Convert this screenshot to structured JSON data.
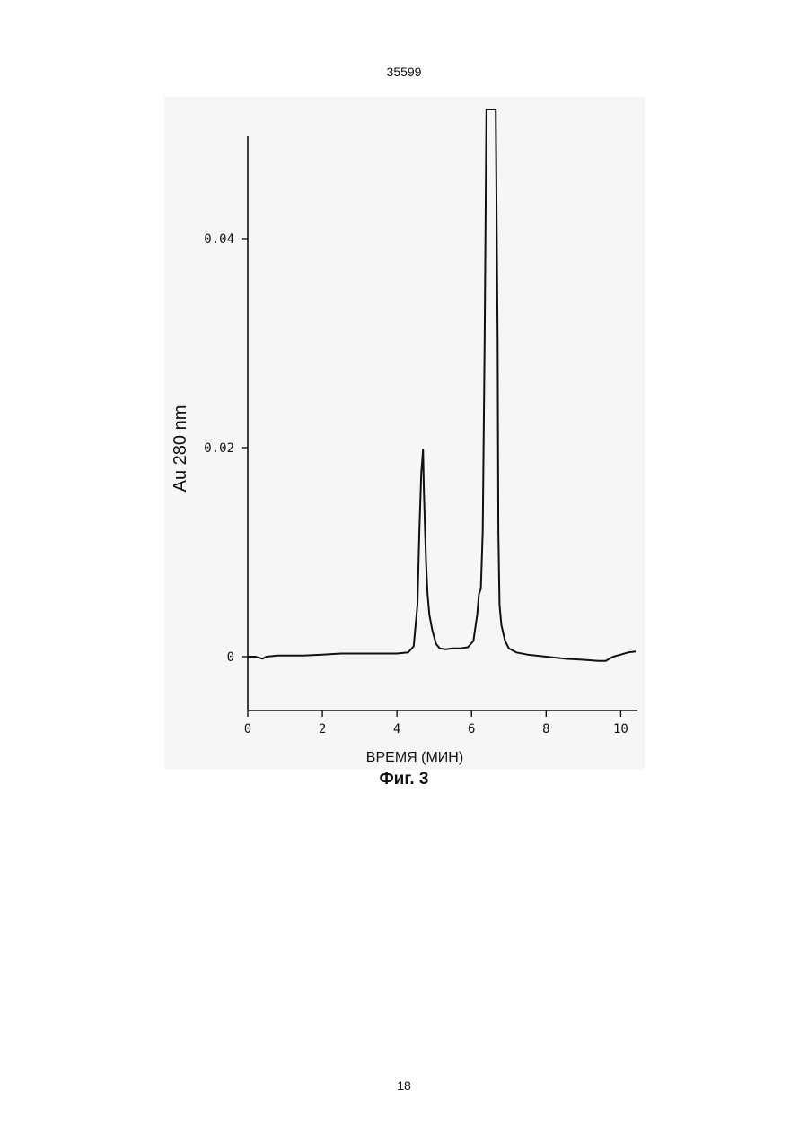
{
  "document": {
    "doc_number": "35599",
    "figure_caption": "Фиг. 3",
    "page_number": "18"
  },
  "chart_data": {
    "type": "line",
    "title": "",
    "xlabel": "ВРЕМЯ (МИН)",
    "ylabel": "Au  280  nm",
    "xlim": [
      0,
      10.4
    ],
    "ylim": [
      -0.005,
      0.056
    ],
    "x_ticks": [
      "0",
      "2",
      "4",
      "6",
      "8",
      "10"
    ],
    "y_ticks": [
      "0",
      "0.02",
      "0.04"
    ],
    "grid": false,
    "series": [
      {
        "x": [
          0,
          0.2,
          0.3,
          0.4,
          0.5,
          0.8,
          1.5,
          2.0,
          2.5,
          3.0,
          3.5,
          4.0,
          4.3,
          4.45,
          4.55,
          4.6,
          4.65,
          4.7,
          4.72,
          4.75,
          4.78,
          4.82,
          4.87,
          4.95,
          5.05,
          5.15,
          5.3,
          5.5,
          5.7,
          5.9,
          6.05,
          6.15,
          6.2,
          6.25,
          6.3,
          6.35,
          6.4,
          6.45,
          6.5,
          6.55,
          6.6,
          6.65,
          6.7,
          6.72,
          6.75,
          6.8,
          6.9,
          7.0,
          7.2,
          7.5,
          8.0,
          8.5,
          9.0,
          9.4,
          9.6,
          9.7,
          9.8,
          10.0,
          10.2,
          10.4
        ],
        "y": [
          0,
          0,
          -0.0001,
          -0.0002,
          0,
          0.0001,
          0.0001,
          0.0002,
          0.0003,
          0.0003,
          0.0003,
          0.0003,
          0.0004,
          0.001,
          0.005,
          0.012,
          0.0175,
          0.0198,
          0.016,
          0.0125,
          0.009,
          0.006,
          0.004,
          0.0025,
          0.0012,
          0.0008,
          0.0007,
          0.0008,
          0.0008,
          0.0009,
          0.0015,
          0.004,
          0.006,
          0.0065,
          0.012,
          0.03,
          0.056,
          0.056,
          0.056,
          0.056,
          0.056,
          0.056,
          0.03,
          0.012,
          0.005,
          0.003,
          0.0015,
          0.0008,
          0.0004,
          0.0002,
          0,
          -0.0002,
          -0.0003,
          -0.0004,
          -0.0004,
          -0.0002,
          0,
          0.0002,
          0.0004,
          0.0005
        ]
      }
    ]
  }
}
